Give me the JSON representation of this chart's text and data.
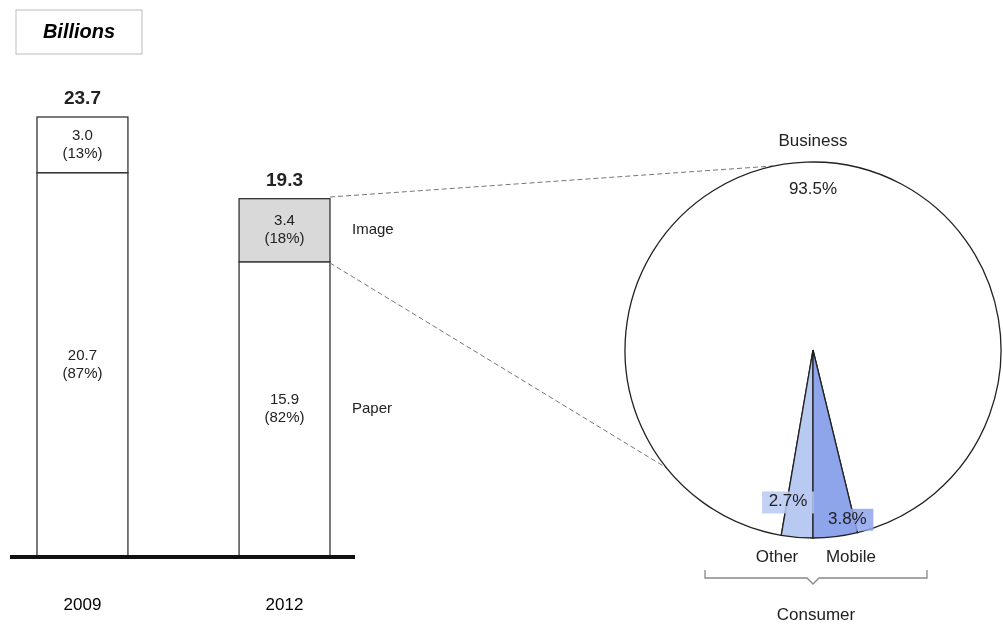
{
  "chart_data": [
    {
      "type": "bar",
      "stacked": true,
      "ylabel": "Billions",
      "categories": [
        "2009",
        "2012"
      ],
      "series": [
        {
          "name": "Paper",
          "color": "#ffffff",
          "values": [
            20.7,
            15.9
          ],
          "value_labels": [
            "20.7\n(87%)",
            "15.9\n(82%)"
          ]
        },
        {
          "name": "Image",
          "colors": [
            "#ffffff",
            "#d9d9d9"
          ],
          "values": [
            3.0,
            3.4
          ],
          "value_labels": [
            "3.0\n(13%)",
            "3.4\n(18%)"
          ]
        }
      ],
      "totals": [
        "23.7",
        "19.3"
      ]
    },
    {
      "type": "pie",
      "categories": [
        "Business",
        "Other",
        "Mobile"
      ],
      "values": [
        93.5,
        2.7,
        3.8
      ],
      "colors": [
        "#ffffff",
        "#b8c9f2",
        "#8ea5ec"
      ],
      "value_labels": [
        "93.5%",
        "2.7%",
        "3.8%"
      ],
      "annotations": [
        "Consumer"
      ]
    }
  ]
}
